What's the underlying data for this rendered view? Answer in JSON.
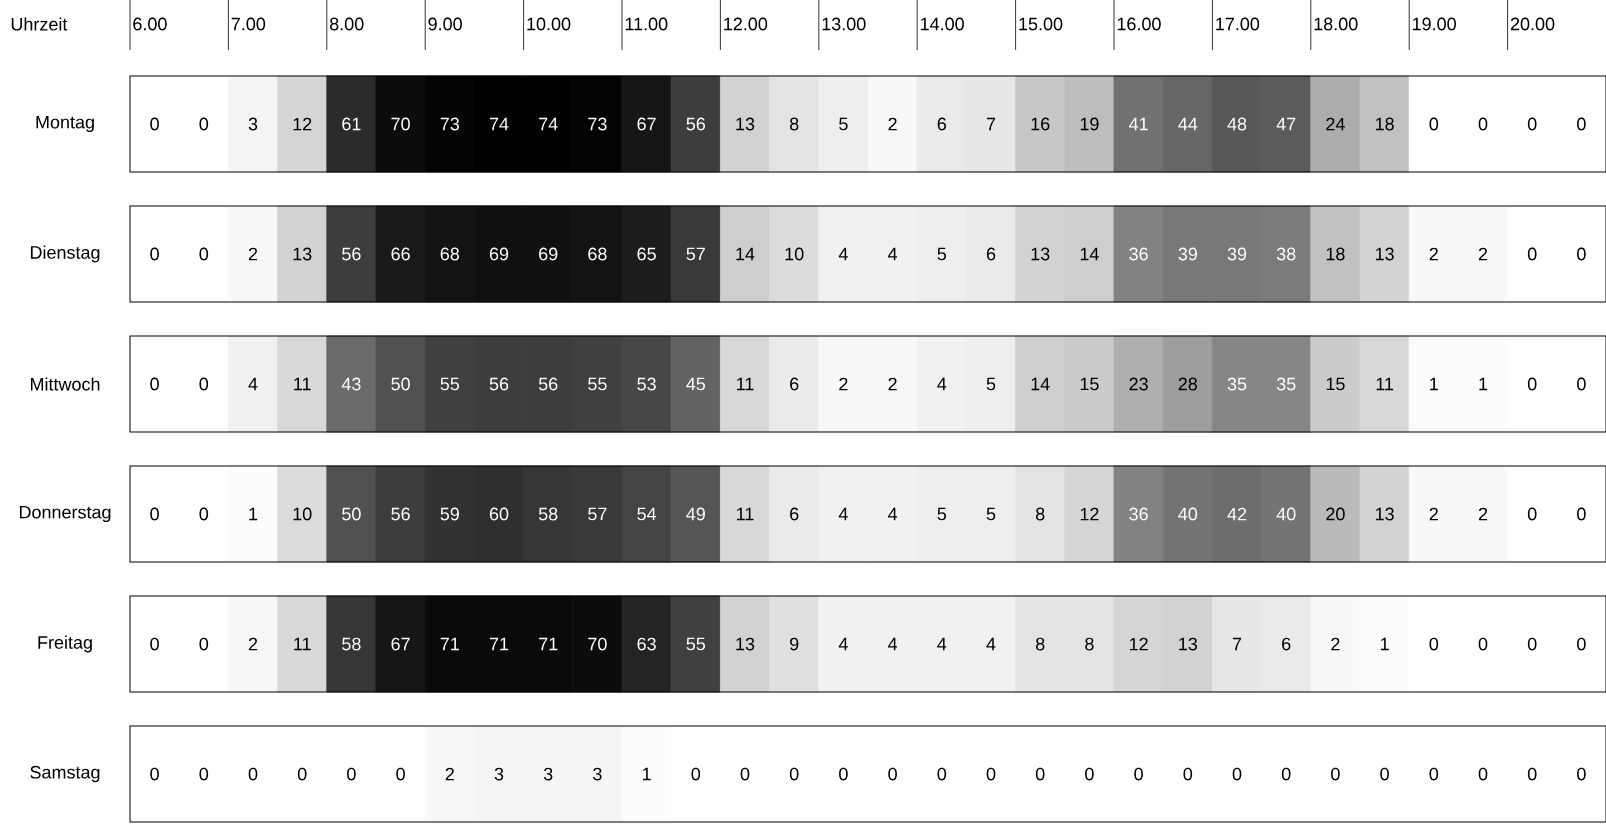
{
  "chart_data": {
    "type": "heatmap",
    "xlabel": "Uhrzeit",
    "data_labels": true,
    "categories": [
      "6.00",
      null,
      "7.00",
      null,
      "8.00",
      null,
      "9.00",
      null,
      "10.00",
      null,
      "11.00",
      null,
      "12.00",
      null,
      "13.00",
      null,
      "14.00",
      null,
      "15.00",
      null,
      "16.00",
      null,
      "17.00",
      null,
      "18.00",
      null,
      "19.00",
      null,
      "20.00",
      null
    ],
    "y_categories": [
      "Montag",
      "Dienstag",
      "Mittwoch",
      "Donnerstag",
      "Freitag",
      "Samstag"
    ],
    "cells": [
      [
        0,
        0,
        3,
        12,
        61,
        70,
        73,
        74,
        74,
        73,
        67,
        56,
        13,
        8,
        5,
        2,
        6,
        7,
        16,
        19,
        41,
        44,
        48,
        47,
        24,
        18,
        0,
        0,
        0,
        0
      ],
      [
        0,
        0,
        2,
        13,
        56,
        66,
        68,
        69,
        69,
        68,
        65,
        57,
        14,
        10,
        4,
        4,
        5,
        6,
        13,
        14,
        36,
        39,
        39,
        38,
        18,
        13,
        2,
        2,
        0,
        0
      ],
      [
        0,
        0,
        4,
        11,
        43,
        50,
        55,
        56,
        56,
        55,
        53,
        45,
        11,
        6,
        2,
        2,
        4,
        5,
        14,
        15,
        23,
        28,
        35,
        35,
        15,
        11,
        1,
        1,
        0,
        0
      ],
      [
        0,
        0,
        1,
        10,
        50,
        56,
        59,
        60,
        58,
        57,
        54,
        49,
        11,
        6,
        4,
        4,
        5,
        5,
        8,
        12,
        36,
        40,
        42,
        40,
        20,
        13,
        2,
        2,
        0,
        0
      ],
      [
        0,
        0,
        2,
        11,
        58,
        67,
        71,
        71,
        71,
        70,
        63,
        55,
        13,
        9,
        4,
        4,
        4,
        4,
        8,
        8,
        12,
        13,
        7,
        6,
        2,
        1,
        0,
        0,
        0,
        0
      ],
      [
        0,
        0,
        0,
        0,
        0,
        0,
        2,
        3,
        3,
        3,
        1,
        0,
        0,
        0,
        0,
        0,
        0,
        0,
        0,
        0,
        0,
        0,
        0,
        0,
        0,
        0,
        0,
        0,
        0,
        0
      ]
    ]
  }
}
